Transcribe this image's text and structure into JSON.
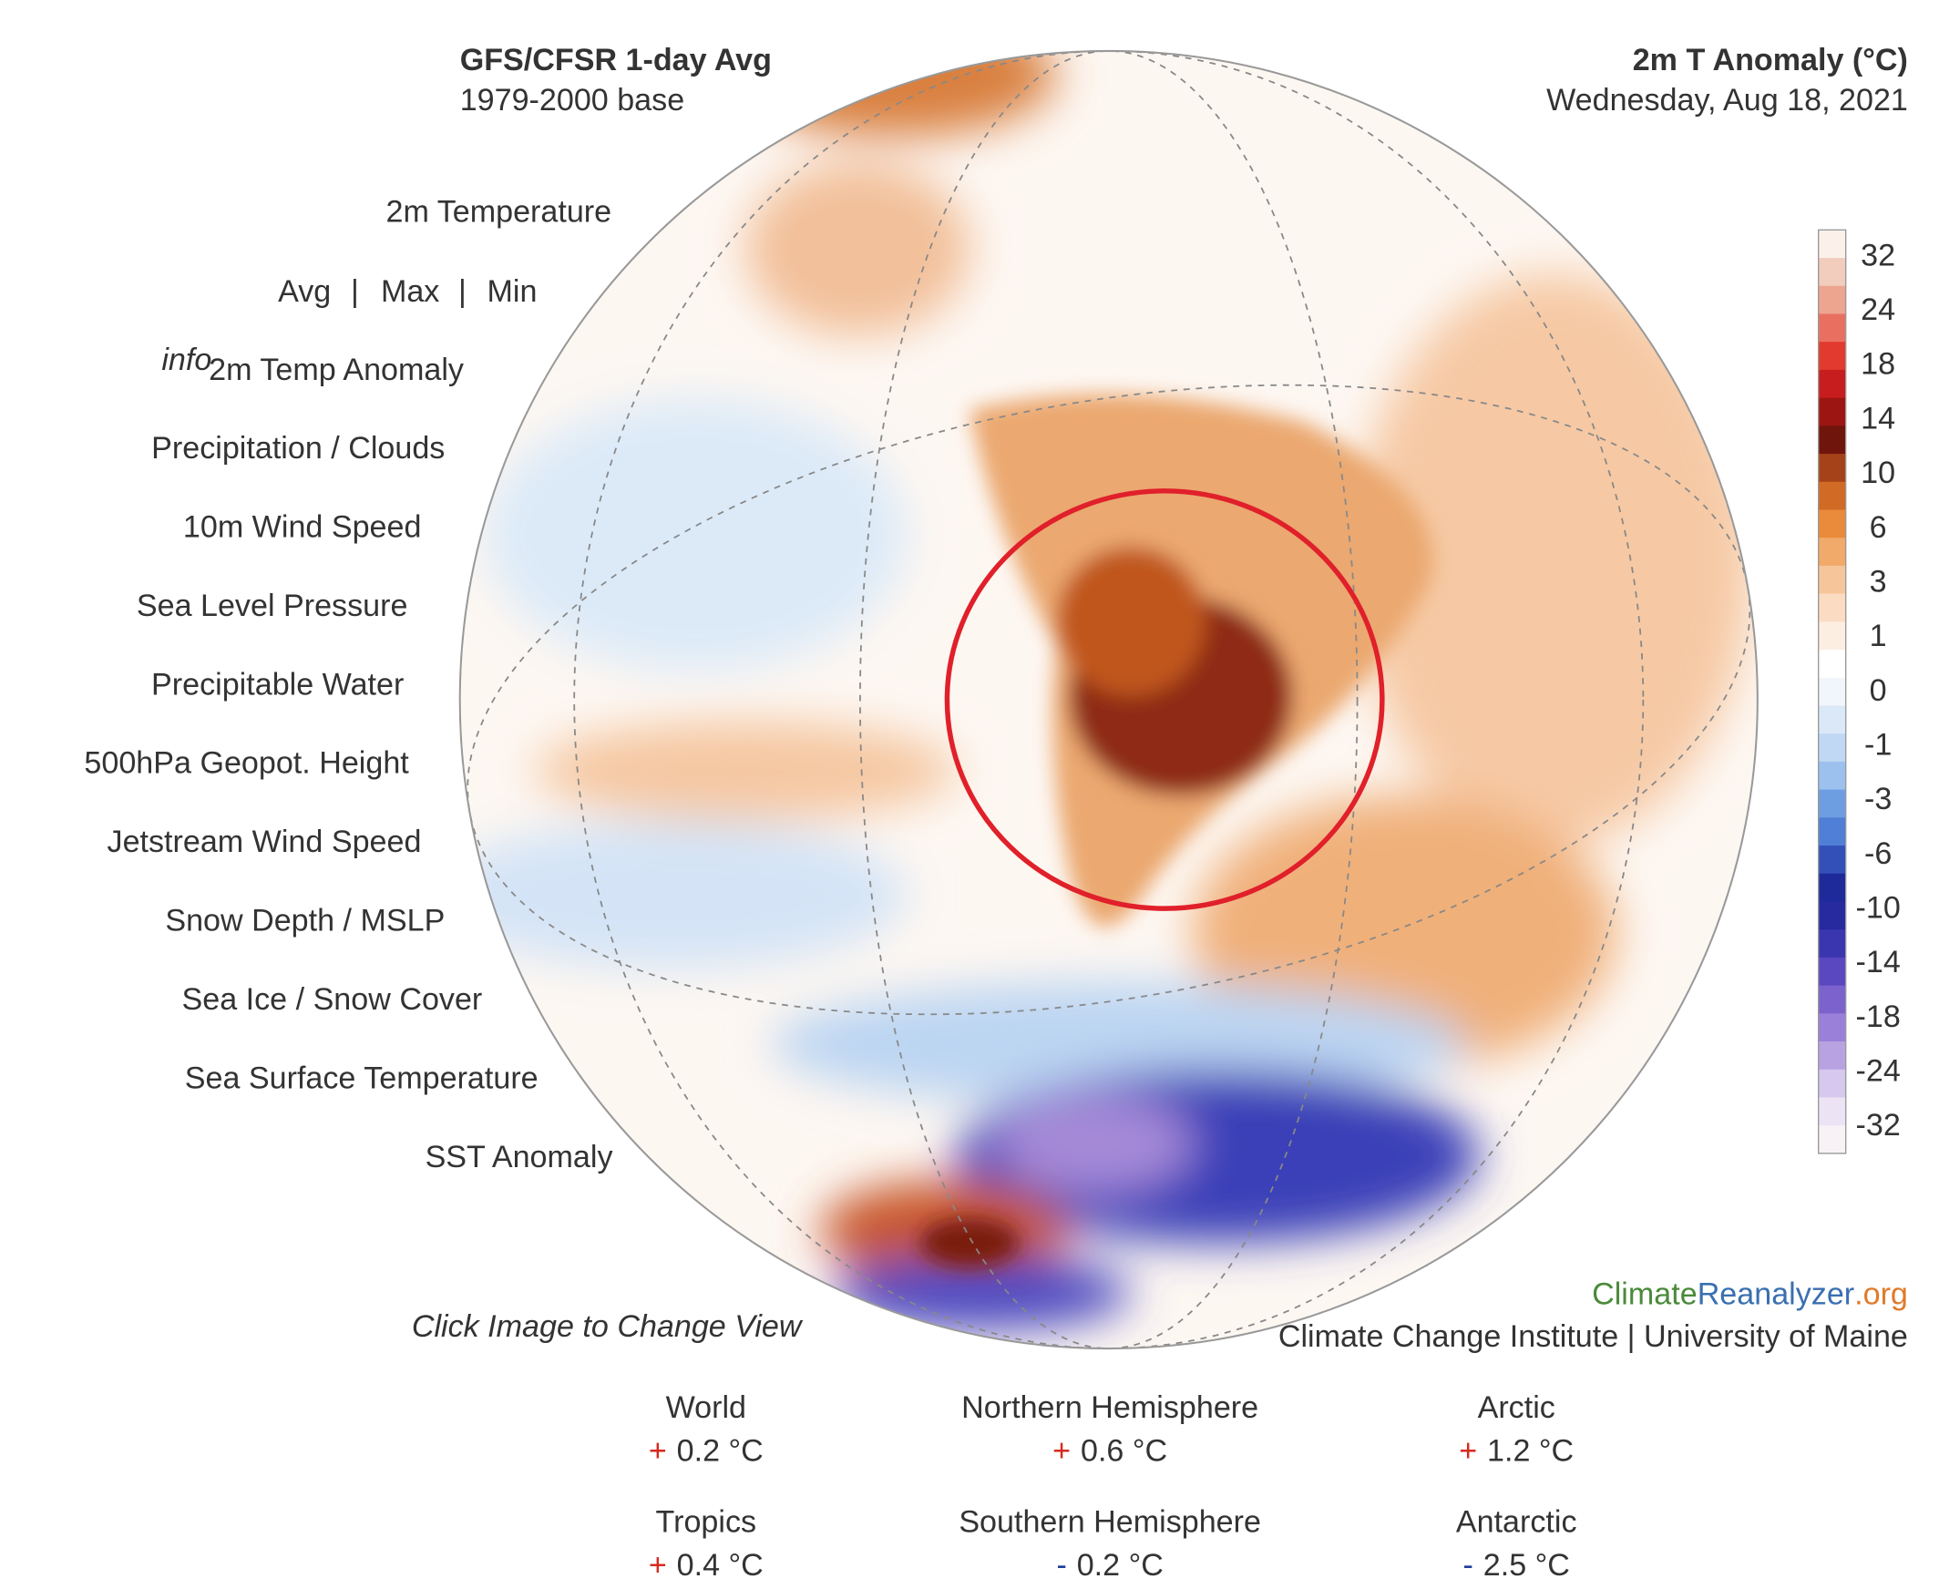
{
  "header": {
    "left_title": "GFS/CFSR 1-day Avg",
    "left_subtitle": "1979-2000 base",
    "right_title": "2m T Anomaly (°C)",
    "right_subtitle": "Wednesday, Aug 18, 2021"
  },
  "menu": {
    "first": "2m Temperature",
    "sub_items": [
      "Avg",
      "Max",
      "Min"
    ],
    "separator": "|",
    "info": "info",
    "selected": "2m Temp Anomaly",
    "items": [
      "Precipitation / Clouds",
      "10m Wind Speed",
      "Sea Level Pressure",
      "Precipitable Water",
      "500hPa Geopot. Height",
      "Jetstream Wind Speed",
      "Snow Depth / MSLP",
      "Sea Ice / Snow Cover",
      "Sea Surface Temperature",
      "SST Anomaly"
    ]
  },
  "colorbar": {
    "labels": [
      32,
      24,
      18,
      14,
      10,
      6,
      3,
      1,
      0,
      -1,
      -3,
      -6,
      -10,
      -14,
      -18,
      -24,
      -32
    ]
  },
  "hint": "Click Image to Change View",
  "logo": {
    "part1": "Climate",
    "part2": "Reanalyzer",
    "part3": ".org",
    "subtitle": "Climate Change Institute | University of Maine"
  },
  "stats": [
    {
      "name": "World",
      "sign": "+",
      "sign_color": "#d62a1e",
      "value": "0.2 °C"
    },
    {
      "name": "Northern Hemisphere",
      "sign": "+",
      "sign_color": "#d62a1e",
      "value": "0.6 °C"
    },
    {
      "name": "Arctic",
      "sign": "+",
      "sign_color": "#d62a1e",
      "value": "1.2 °C"
    },
    {
      "name": "Tropics",
      "sign": "+",
      "sign_color": "#d62a1e",
      "value": "0.4 °C"
    },
    {
      "name": "Southern Hemisphere",
      "sign": "-",
      "sign_color": "#1f3f9f",
      "value": "0.2 °C"
    },
    {
      "name": "Antarctic",
      "sign": "-",
      "sign_color": "#1f3f9f",
      "value": "2.5 °C"
    }
  ]
}
